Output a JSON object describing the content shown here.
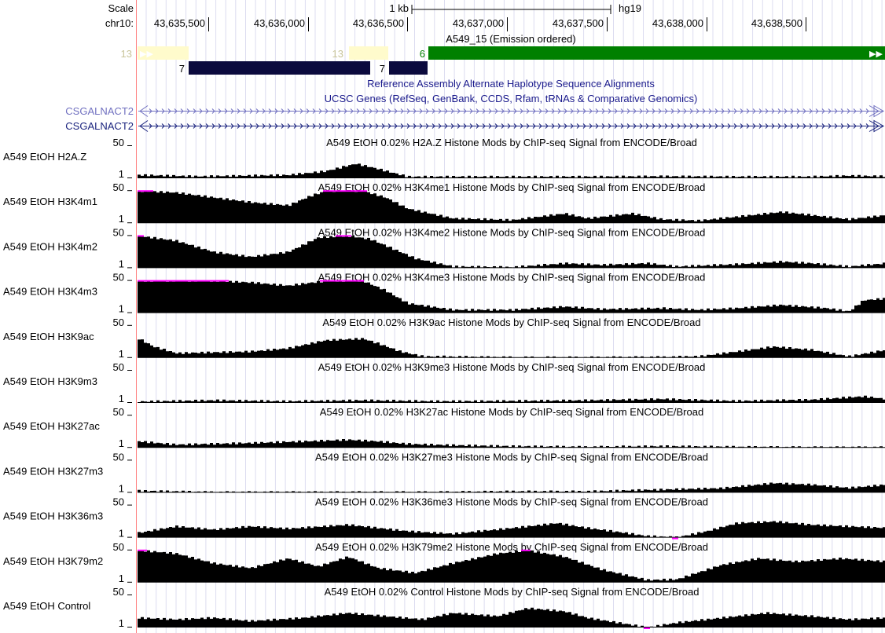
{
  "header": {
    "scale_label": "Scale",
    "scale_bar_text": "1 kb",
    "assembly": "hg19",
    "chrom_label": "chr10:",
    "ticks": [
      "43,635,500",
      "43,636,000",
      "43,636,500",
      "43,637,000",
      "43,637,500",
      "43,638,000",
      "43,638,500"
    ]
  },
  "chromhmm": {
    "title": "A549_15 (Emission ordered)",
    "segments": [
      {
        "label": "13",
        "color": "#fffbcc"
      },
      {
        "label": "7",
        "color": "#0b0a3d"
      },
      {
        "label": "13",
        "color": "#fffbcc"
      },
      {
        "label": "7",
        "color": "#0b0a3d"
      },
      {
        "label": "6",
        "color": "#008000"
      }
    ]
  },
  "track_titles": {
    "haplotypes": "Reference Assembly Alternate Haplotype Sequence Alignments",
    "genes": "UCSC Genes (RefSeq, GenBank, CCDS, Rfam, tRNAs & Comparative Genomics)"
  },
  "genes": [
    {
      "name": "CSGALNACT2",
      "color": "#7070c0"
    },
    {
      "name": "CSGALNACT2",
      "color": "#1a237e"
    }
  ],
  "signal_tracks": [
    {
      "name": "A549 EtOH H2A.Z",
      "max": "50",
      "min": "1",
      "title": "A549 EtOH 0.02% H2A.Z Histone Mods by ChIP-seq Signal from ENCODE/Broad"
    },
    {
      "name": "A549 EtOH H3K4m1",
      "max": "50",
      "min": "1",
      "title": "A549 EtOH 0.02% H3K4me1 Histone Mods by ChIP-seq Signal from ENCODE/Broad"
    },
    {
      "name": "A549 EtOH H3K4m2",
      "max": "50",
      "min": "1",
      "title": "A549 EtOH 0.02% H3K4me2 Histone Mods by ChIP-seq Signal from ENCODE/Broad"
    },
    {
      "name": "A549 EtOH H3K4m3",
      "max": "50",
      "min": "1",
      "title": "A549 EtOH 0.02% H3K4me3 Histone Mods by ChIP-seq Signal from ENCODE/Broad"
    },
    {
      "name": "A549 EtOH H3K9ac",
      "max": "50",
      "min": "1",
      "title": "A549 EtOH 0.02% H3K9ac Histone Mods by ChIP-seq Signal from ENCODE/Broad"
    },
    {
      "name": "A549 EtOH H3K9m3",
      "max": "50",
      "min": "1",
      "title": "A549 EtOH 0.02% H3K9me3 Histone Mods by ChIP-seq Signal from ENCODE/Broad"
    },
    {
      "name": "A549 EtOH H3K27ac",
      "max": "50",
      "min": "1",
      "title": "A549 EtOH 0.02% H3K27ac Histone Mods by ChIP-seq Signal from ENCODE/Broad"
    },
    {
      "name": "A549 EtOH H3K27m3",
      "max": "50",
      "min": "1",
      "title": "A549 EtOH 0.02% H3K27me3 Histone Mods by ChIP-seq Signal from ENCODE/Broad"
    },
    {
      "name": "A549 EtOH H3K36m3",
      "max": "50",
      "min": "1",
      "title": "A549 EtOH 0.02% H3K36me3 Histone Mods by ChIP-seq Signal from ENCODE/Broad"
    },
    {
      "name": "A549 EtOH H3K79m2",
      "max": "50",
      "min": "1",
      "title": "A549 EtOH 0.02% H3K79me2 Histone Mods by ChIP-seq Signal from ENCODE/Broad"
    },
    {
      "name": "A549 EtOH Control",
      "max": "50",
      "min": "1",
      "title": "A549 EtOH 0.02% Control Histone Mods by ChIP-seq Signal from ENCODE/Broad"
    }
  ],
  "colors": {
    "signal": "#000000",
    "clipped": "#ff00ff",
    "grid": "#dcdcf0",
    "axis_red": "#ff8080"
  }
}
